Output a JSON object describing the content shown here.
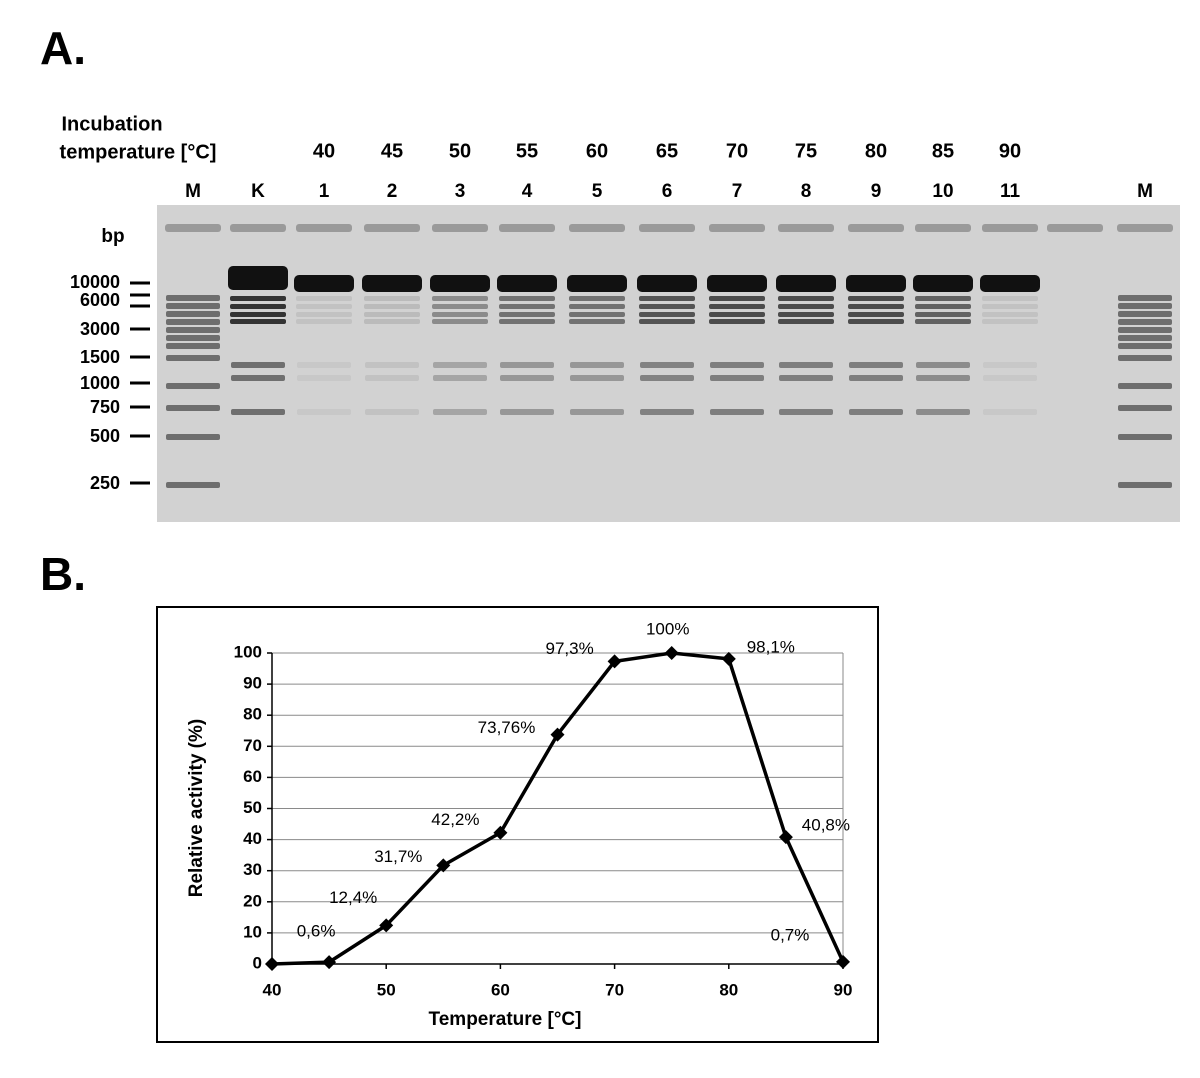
{
  "panel_a": {
    "label": "A.",
    "incubation_label": [
      "Incubation",
      "temperature [°C]"
    ],
    "temperatures": [
      40,
      45,
      50,
      55,
      60,
      65,
      70,
      75,
      80,
      85,
      90
    ],
    "lanes": [
      "M",
      "K",
      "1",
      "2",
      "3",
      "4",
      "5",
      "6",
      "7",
      "8",
      "9",
      "10",
      "11",
      "M"
    ],
    "bp_unit": "bp",
    "bp_markers": [
      10000,
      6000,
      3000,
      1500,
      1000,
      750,
      500,
      250
    ]
  },
  "panel_b_label": "B.",
  "chart_data": {
    "type": "line",
    "x": [
      40,
      45,
      50,
      55,
      60,
      65,
      70,
      75,
      80,
      85,
      90
    ],
    "values": [
      0,
      0.6,
      12.4,
      31.7,
      42.2,
      73.76,
      97.3,
      100,
      98.1,
      40.8,
      0.7
    ],
    "value_labels": [
      null,
      "0,6%",
      "12,4%",
      "31,7%",
      "42,2%",
      "73,76%",
      "97,3%",
      "100%",
      "98,1%",
      "40,8%",
      "0,7%"
    ],
    "color": "#000000",
    "xlabel": "Temperature [°C]",
    "ylabel": "Relative activity (%)",
    "xlim": [
      40,
      90
    ],
    "xticks": [
      40,
      50,
      60,
      70,
      80,
      90
    ],
    "ylim": [
      0,
      100
    ],
    "yticks": [
      0,
      10,
      20,
      30,
      40,
      50,
      60,
      70,
      80,
      90,
      100
    ],
    "grid": true
  }
}
